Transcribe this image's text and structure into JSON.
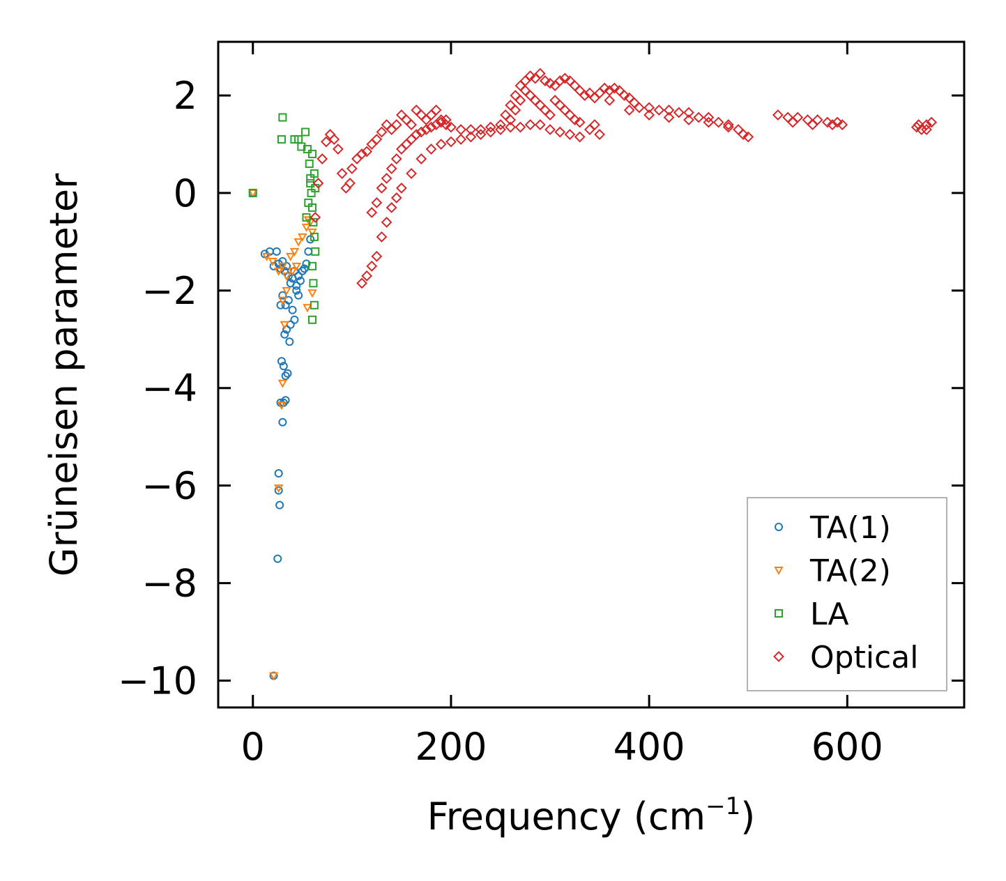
{
  "chart_data": {
    "type": "scatter",
    "title": "",
    "xlabel": "Frequency (cm",
    "xlabel_sup": "−1",
    "xlabel_end": ")",
    "ylabel": "Grüneisen parameter",
    "xlim": [
      -35,
      718
    ],
    "ylim": [
      -10.55,
      3.1
    ],
    "x_ticks": [
      0,
      200,
      400,
      600
    ],
    "x_tick_labels": [
      "0",
      "200",
      "400",
      "600"
    ],
    "y_ticks": [
      -10,
      -8,
      -6,
      -4,
      -2,
      0,
      2
    ],
    "y_tick_labels": [
      "−10",
      "−8",
      "−6",
      "−4",
      "−2",
      "0",
      "2"
    ],
    "grid": false,
    "legend_position": "bottom-right",
    "series": [
      {
        "name": "TA(1)",
        "marker": "circle",
        "color": "#1f77b4",
        "points": [
          [
            0,
            0
          ],
          [
            12,
            -1.25
          ],
          [
            17,
            -1.2
          ],
          [
            21,
            -1.5
          ],
          [
            24,
            -1.2
          ],
          [
            26,
            -1.45
          ],
          [
            28,
            -1.55
          ],
          [
            30,
            -1.4
          ],
          [
            32,
            -1.6
          ],
          [
            34,
            -1.5
          ],
          [
            36,
            -1.7
          ],
          [
            38,
            -1.85
          ],
          [
            40,
            -1.75
          ],
          [
            42,
            -1.6
          ],
          [
            44,
            -1.9
          ],
          [
            46,
            -1.7
          ],
          [
            48,
            -1.8
          ],
          [
            50,
            -1.6
          ],
          [
            52,
            -1.55
          ],
          [
            54,
            -1.45
          ],
          [
            56,
            -1.2
          ],
          [
            58,
            -0.95
          ],
          [
            46,
            -2.1
          ],
          [
            44,
            -2.0
          ],
          [
            36,
            -2.2
          ],
          [
            33,
            -2.3
          ],
          [
            30,
            -2.1
          ],
          [
            28,
            -2.3
          ],
          [
            40,
            -2.4
          ],
          [
            42,
            -2.6
          ],
          [
            38,
            -2.7
          ],
          [
            34,
            -2.8
          ],
          [
            32,
            -2.9
          ],
          [
            37,
            -3.05
          ],
          [
            29,
            -3.45
          ],
          [
            31,
            -3.55
          ],
          [
            33,
            -3.75
          ],
          [
            35,
            -3.7
          ],
          [
            28,
            -4.3
          ],
          [
            31,
            -4.3
          ],
          [
            33,
            -4.25
          ],
          [
            30,
            -4.7
          ],
          [
            26,
            -5.75
          ],
          [
            26,
            -6.1
          ],
          [
            27,
            -6.4
          ],
          [
            25,
            -7.5
          ],
          [
            21,
            -9.9
          ]
        ]
      },
      {
        "name": "TA(2)",
        "marker": "triangle-down",
        "color": "#ff7f0e",
        "points": [
          [
            0,
            0
          ],
          [
            14,
            -1.3
          ],
          [
            20,
            -1.4
          ],
          [
            26,
            -1.6
          ],
          [
            30,
            -1.5
          ],
          [
            34,
            -1.7
          ],
          [
            38,
            -1.3
          ],
          [
            42,
            -1.2
          ],
          [
            46,
            -1.0
          ],
          [
            50,
            -0.9
          ],
          [
            54,
            -0.7
          ],
          [
            56,
            -0.55
          ],
          [
            58,
            -0.6
          ],
          [
            60,
            -0.8
          ],
          [
            44,
            -1.5
          ],
          [
            40,
            -1.6
          ],
          [
            34,
            -2.0
          ],
          [
            30,
            -2.2
          ],
          [
            32,
            -2.7
          ],
          [
            30,
            -3.9
          ],
          [
            29,
            -4.35
          ],
          [
            26,
            -6.05
          ],
          [
            21,
            -9.9
          ],
          [
            55,
            -2.35
          ],
          [
            60,
            -2.05
          ]
        ]
      },
      {
        "name": "LA",
        "marker": "square",
        "color": "#2ca02c",
        "points": [
          [
            0,
            0
          ],
          [
            29,
            1.1
          ],
          [
            30,
            1.55
          ],
          [
            42,
            1.1
          ],
          [
            46,
            1.1
          ],
          [
            49,
            0.95
          ],
          [
            53,
            1.25
          ],
          [
            55,
            0.9
          ],
          [
            57,
            0.6
          ],
          [
            58,
            0.3
          ],
          [
            59,
            0.0
          ],
          [
            60,
            -0.3
          ],
          [
            61,
            -0.6
          ],
          [
            62,
            -0.9
          ],
          [
            63,
            -1.2
          ],
          [
            60,
            0.8
          ],
          [
            62,
            0.4
          ],
          [
            58,
            0.2
          ],
          [
            56,
            -0.2
          ],
          [
            54,
            -0.5
          ],
          [
            60,
            -1.5
          ],
          [
            61,
            -1.85
          ],
          [
            62,
            -2.3
          ],
          [
            60,
            -2.6
          ],
          [
            63,
            0.1
          ]
        ]
      },
      {
        "name": "Optical",
        "marker": "diamond",
        "color": "#d62728",
        "points": [
          [
            63,
            -0.5
          ],
          [
            66,
            0.2
          ],
          [
            70,
            0.7
          ],
          [
            74,
            1.05
          ],
          [
            78,
            1.2
          ],
          [
            82,
            1.1
          ],
          [
            86,
            0.9
          ],
          [
            90,
            0.4
          ],
          [
            94,
            0.1
          ],
          [
            98,
            0.2
          ],
          [
            100,
            0.5
          ],
          [
            105,
            0.7
          ],
          [
            110,
            0.8
          ],
          [
            115,
            0.85
          ],
          [
            120,
            1.0
          ],
          [
            125,
            1.1
          ],
          [
            130,
            1.25
          ],
          [
            135,
            1.4
          ],
          [
            140,
            1.3
          ],
          [
            145,
            1.4
          ],
          [
            150,
            1.6
          ],
          [
            155,
            1.5
          ],
          [
            160,
            1.4
          ],
          [
            165,
            1.7
          ],
          [
            170,
            1.6
          ],
          [
            175,
            1.5
          ],
          [
            180,
            1.6
          ],
          [
            185,
            1.7
          ],
          [
            190,
            1.5
          ],
          [
            195,
            1.4
          ],
          [
            200,
            1.35
          ],
          [
            210,
            1.3
          ],
          [
            220,
            1.3
          ],
          [
            230,
            1.3
          ],
          [
            240,
            1.35
          ],
          [
            250,
            1.4
          ],
          [
            255,
            1.6
          ],
          [
            260,
            1.8
          ],
          [
            265,
            2.0
          ],
          [
            270,
            2.2
          ],
          [
            275,
            2.3
          ],
          [
            280,
            2.4
          ],
          [
            285,
            2.35
          ],
          [
            290,
            2.45
          ],
          [
            295,
            2.3
          ],
          [
            300,
            2.25
          ],
          [
            305,
            2.2
          ],
          [
            310,
            2.3
          ],
          [
            315,
            2.35
          ],
          [
            320,
            2.3
          ],
          [
            325,
            2.2
          ],
          [
            330,
            2.1
          ],
          [
            335,
            2.0
          ],
          [
            340,
            2.05
          ],
          [
            345,
            1.95
          ],
          [
            350,
            2.05
          ],
          [
            355,
            2.15
          ],
          [
            360,
            2.1
          ],
          [
            365,
            2.15
          ],
          [
            370,
            2.1
          ],
          [
            375,
            2.0
          ],
          [
            380,
            1.95
          ],
          [
            385,
            1.85
          ],
          [
            390,
            1.75
          ],
          [
            400,
            1.75
          ],
          [
            410,
            1.7
          ],
          [
            420,
            1.7
          ],
          [
            430,
            1.65
          ],
          [
            440,
            1.65
          ],
          [
            450,
            1.55
          ],
          [
            460,
            1.45
          ],
          [
            470,
            1.45
          ],
          [
            480,
            1.4
          ],
          [
            490,
            1.3
          ],
          [
            500,
            1.15
          ],
          [
            530,
            1.6
          ],
          [
            540,
            1.55
          ],
          [
            550,
            1.55
          ],
          [
            560,
            1.5
          ],
          [
            570,
            1.5
          ],
          [
            580,
            1.45
          ],
          [
            590,
            1.45
          ],
          [
            595,
            1.4
          ],
          [
            670,
            1.35
          ],
          [
            675,
            1.3
          ],
          [
            680,
            1.4
          ],
          [
            685,
            1.45
          ],
          [
            110,
            -1.85
          ],
          [
            115,
            -1.7
          ],
          [
            120,
            -1.5
          ],
          [
            125,
            -1.3
          ],
          [
            130,
            -0.9
          ],
          [
            135,
            -0.6
          ],
          [
            140,
            -0.3
          ],
          [
            145,
            -0.1
          ],
          [
            150,
            0.1
          ],
          [
            160,
            0.4
          ],
          [
            170,
            0.7
          ],
          [
            180,
            0.9
          ],
          [
            190,
            1.0
          ],
          [
            200,
            1.05
          ],
          [
            210,
            1.1
          ],
          [
            220,
            1.15
          ],
          [
            230,
            1.2
          ],
          [
            240,
            1.25
          ],
          [
            250,
            1.3
          ],
          [
            260,
            1.35
          ],
          [
            270,
            1.35
          ],
          [
            280,
            1.4
          ],
          [
            290,
            1.4
          ],
          [
            300,
            1.3
          ],
          [
            310,
            1.25
          ],
          [
            320,
            1.2
          ],
          [
            330,
            1.15
          ],
          [
            340,
            1.3
          ],
          [
            350,
            1.2
          ],
          [
            120,
            -0.4
          ],
          [
            125,
            -0.2
          ],
          [
            130,
            0.1
          ],
          [
            135,
            0.3
          ],
          [
            140,
            0.5
          ],
          [
            145,
            0.7
          ],
          [
            150,
            0.9
          ],
          [
            155,
            1.0
          ],
          [
            160,
            1.1
          ],
          [
            165,
            1.2
          ],
          [
            170,
            1.25
          ],
          [
            175,
            1.3
          ],
          [
            180,
            1.35
          ],
          [
            185,
            1.4
          ],
          [
            190,
            1.45
          ],
          [
            195,
            1.5
          ],
          [
            260,
            1.5
          ],
          [
            265,
            1.7
          ],
          [
            270,
            1.9
          ],
          [
            275,
            2.1
          ],
          [
            280,
            2.0
          ],
          [
            285,
            1.9
          ],
          [
            290,
            1.8
          ],
          [
            295,
            1.7
          ],
          [
            300,
            1.6
          ],
          [
            305,
            1.9
          ],
          [
            310,
            1.8
          ],
          [
            315,
            1.7
          ],
          [
            320,
            1.6
          ],
          [
            325,
            1.5
          ],
          [
            330,
            1.45
          ],
          [
            345,
            1.4
          ],
          [
            360,
            1.9
          ],
          [
            380,
            1.7
          ],
          [
            400,
            1.6
          ],
          [
            420,
            1.55
          ],
          [
            440,
            1.5
          ],
          [
            460,
            1.55
          ],
          [
            480,
            1.35
          ],
          [
            495,
            1.2
          ],
          [
            545,
            1.45
          ],
          [
            565,
            1.4
          ],
          [
            585,
            1.4
          ],
          [
            672,
            1.4
          ],
          [
            680,
            1.3
          ]
        ]
      }
    ]
  }
}
